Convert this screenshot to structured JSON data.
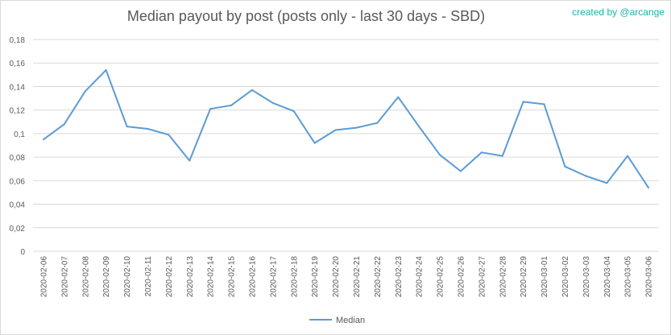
{
  "header": {
    "title": "Median payout by post (posts only - last 30 days - SBD)",
    "credit": "created by @arcange"
  },
  "colors": {
    "series": "#5b9bd5",
    "grid": "#d9d9d9",
    "text": "#595959",
    "credit": "#19b2a8"
  },
  "chart_data": {
    "type": "line",
    "title": "Median payout by post (posts only - last 30 days - SBD)",
    "xlabel": "",
    "ylabel": "",
    "ylim": [
      0,
      0.18
    ],
    "yticks": [
      "0",
      "0,02",
      "0,04",
      "0,06",
      "0,08",
      "0,1",
      "0,12",
      "0,14",
      "0,16",
      "0,18"
    ],
    "grid": true,
    "legend_position": "bottom",
    "categories": [
      "2020-02-06",
      "2020-02-07",
      "2020-02-08",
      "2020-02-09",
      "2020-02-10",
      "2020-02-11",
      "2020-02-12",
      "2020-02-13",
      "2020-02-14",
      "2020-02-15",
      "2020-02-16",
      "2020-02-17",
      "2020-02-18",
      "2020-02-19",
      "2020-02-20",
      "2020-02-21",
      "2020-02-22",
      "2020-02-23",
      "2020-02-24",
      "2020-02-25",
      "2020-02-26",
      "2020-02-27",
      "2020-02-28",
      "2020-02-29",
      "2020-03-01",
      "2020-03-02",
      "2020-03-03",
      "2020-03-04",
      "2020-03-05",
      "2020-03-06"
    ],
    "series": [
      {
        "name": "Median",
        "values": [
          0.095,
          0.108,
          0.136,
          0.154,
          0.106,
          0.104,
          0.099,
          0.077,
          0.121,
          0.124,
          0.137,
          0.126,
          0.119,
          0.092,
          0.103,
          0.105,
          0.109,
          0.131,
          0.106,
          0.082,
          0.068,
          0.084,
          0.081,
          0.127,
          0.125,
          0.072,
          0.064,
          0.058,
          0.081,
          0.054
        ]
      }
    ]
  }
}
